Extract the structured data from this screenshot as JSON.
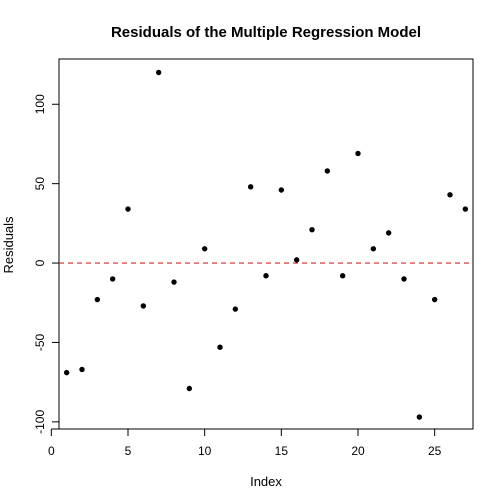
{
  "chart_data": {
    "type": "scatter",
    "title": "Residuals of the Multiple Regression Model",
    "xlabel": "Index",
    "ylabel": "Residuals",
    "xlim": [
      0.5,
      27.5
    ],
    "ylim": [
      -104.5,
      128.5
    ],
    "x_ticks": [
      0,
      5,
      10,
      15,
      20,
      25
    ],
    "y_ticks": [
      -100,
      -50,
      0,
      50,
      100
    ],
    "grid": false,
    "reference_line": {
      "y": 0,
      "style": "dashed",
      "color": "#d62728"
    },
    "point_color": "#000000",
    "points": [
      {
        "x": 1,
        "y": -69
      },
      {
        "x": 2,
        "y": -67
      },
      {
        "x": 3,
        "y": -23
      },
      {
        "x": 4,
        "y": -10
      },
      {
        "x": 5,
        "y": 34
      },
      {
        "x": 6,
        "y": -27
      },
      {
        "x": 7,
        "y": 120
      },
      {
        "x": 8,
        "y": -12
      },
      {
        "x": 9,
        "y": -79
      },
      {
        "x": 10,
        "y": 9
      },
      {
        "x": 11,
        "y": -53
      },
      {
        "x": 12,
        "y": -29
      },
      {
        "x": 13,
        "y": 48
      },
      {
        "x": 14,
        "y": -8
      },
      {
        "x": 15,
        "y": 46
      },
      {
        "x": 16,
        "y": 2
      },
      {
        "x": 17,
        "y": 21
      },
      {
        "x": 18,
        "y": 58
      },
      {
        "x": 19,
        "y": -8
      },
      {
        "x": 20,
        "y": 69
      },
      {
        "x": 21,
        "y": 9
      },
      {
        "x": 22,
        "y": 19
      },
      {
        "x": 23,
        "y": -10
      },
      {
        "x": 24,
        "y": -97
      },
      {
        "x": 25,
        "y": -23
      },
      {
        "x": 26,
        "y": 43
      },
      {
        "x": 27,
        "y": 34
      }
    ]
  }
}
